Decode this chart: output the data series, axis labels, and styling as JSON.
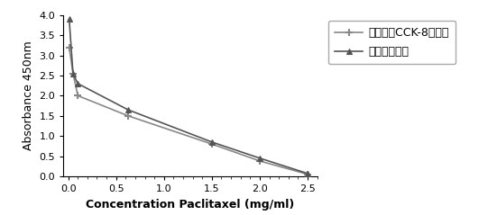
{
  "line1_x": [
    0.01,
    0.05,
    0.1,
    0.625,
    1.5,
    2.0,
    2.5
  ],
  "line1_y": [
    3.2,
    2.55,
    2.0,
    1.5,
    0.8,
    0.38,
    0.05
  ],
  "line2_x": [
    0.01,
    0.05,
    0.1,
    0.625,
    1.5,
    2.0,
    2.5
  ],
  "line2_y": [
    3.9,
    2.55,
    2.3,
    1.65,
    0.85,
    0.45,
    0.07
  ],
  "line1_label": "日本同仁CCK-8试剂盒",
  "line2_label": "本发明试剂盒",
  "line1_color": "#888888",
  "line2_color": "#555555",
  "xlabel": "Concentration Paclitaxel (mg/ml)",
  "ylabel": "Absorbance 450nm",
  "xlim": [
    -0.05,
    2.6
  ],
  "ylim": [
    0,
    4.0
  ],
  "xticks": [
    0.0,
    0.5,
    1.0,
    1.5,
    2.0,
    2.5
  ],
  "yticks": [
    0.0,
    0.5,
    1.0,
    1.5,
    2.0,
    2.5,
    3.0,
    3.5,
    4.0
  ],
  "xlabel_fontsize": 9,
  "ylabel_fontsize": 9,
  "legend_fontsize": 9,
  "tick_fontsize": 8,
  "background_color": "#ffffff"
}
